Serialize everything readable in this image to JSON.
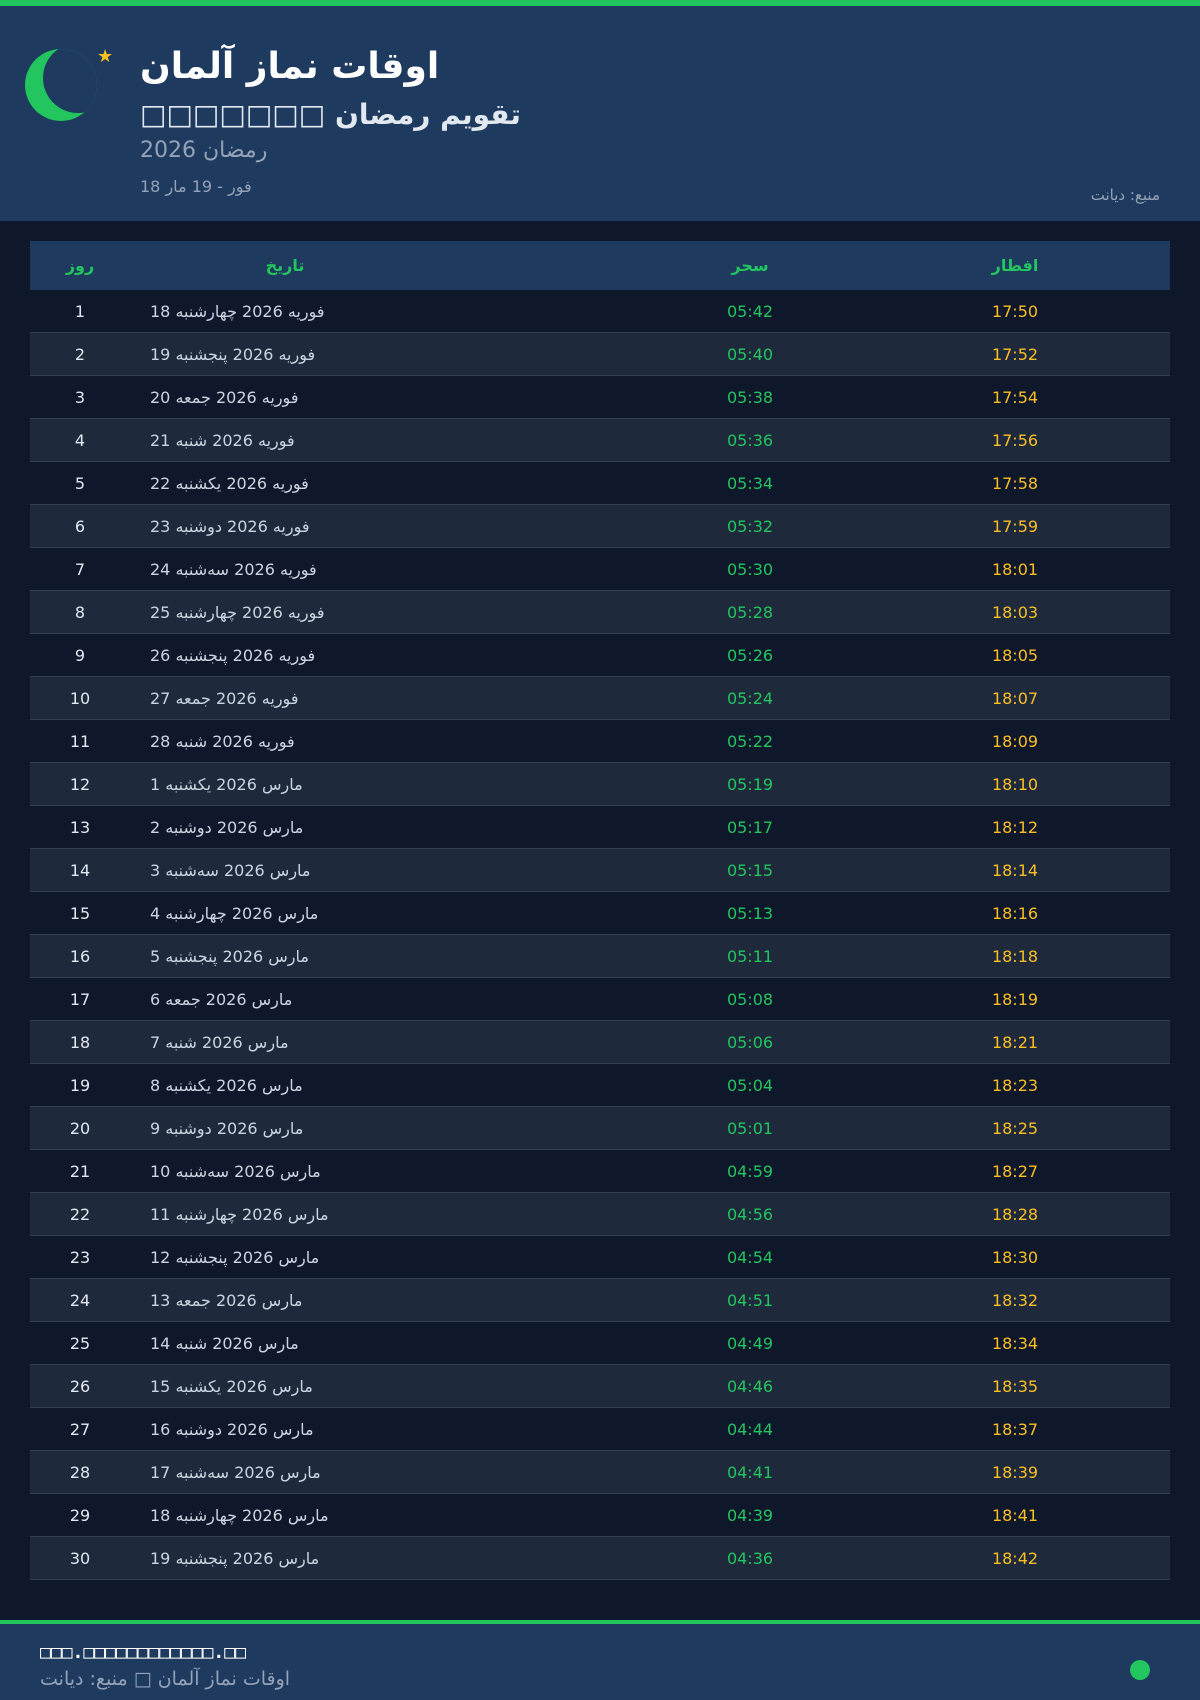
{
  "header": {
    "title": "اوقات نماز آلمان",
    "subtitle": "□□□□□□□ تقویم رمضان",
    "year_label": "رمضان 2026",
    "date_range": "18 فور - 19 مار",
    "source": "منبع: دیانت",
    "icons": [
      "crescent-moon-icon",
      "star-icon"
    ]
  },
  "table": {
    "columns": {
      "day": "روز",
      "date": "تاریخ",
      "suhoor": "سحر",
      "iftar": "افطار"
    },
    "rows": [
      {
        "day": "1",
        "date": "18 فوریه 2026 چهارشنبه",
        "suhoor": "05:42",
        "iftar": "17:50"
      },
      {
        "day": "2",
        "date": "19 فوریه 2026 پنجشنبه",
        "suhoor": "05:40",
        "iftar": "17:52"
      },
      {
        "day": "3",
        "date": "20 فوریه 2026 جمعه",
        "suhoor": "05:38",
        "iftar": "17:54"
      },
      {
        "day": "4",
        "date": "21 فوریه 2026 شنبه",
        "suhoor": "05:36",
        "iftar": "17:56"
      },
      {
        "day": "5",
        "date": "22 فوریه 2026 یکشنبه",
        "suhoor": "05:34",
        "iftar": "17:58"
      },
      {
        "day": "6",
        "date": "23 فوریه 2026 دوشنبه",
        "suhoor": "05:32",
        "iftar": "17:59"
      },
      {
        "day": "7",
        "date": "24 فوریه 2026 سه‌شنبه",
        "suhoor": "05:30",
        "iftar": "18:01"
      },
      {
        "day": "8",
        "date": "25 فوریه 2026 چهارشنبه",
        "suhoor": "05:28",
        "iftar": "18:03"
      },
      {
        "day": "9",
        "date": "26 فوریه 2026 پنجشنبه",
        "suhoor": "05:26",
        "iftar": "18:05"
      },
      {
        "day": "10",
        "date": "27 فوریه 2026 جمعه",
        "suhoor": "05:24",
        "iftar": "18:07"
      },
      {
        "day": "11",
        "date": "28 فوریه 2026 شنبه",
        "suhoor": "05:22",
        "iftar": "18:09"
      },
      {
        "day": "12",
        "date": "1 مارس 2026 یکشنبه",
        "suhoor": "05:19",
        "iftar": "18:10"
      },
      {
        "day": "13",
        "date": "2 مارس 2026 دوشنبه",
        "suhoor": "05:17",
        "iftar": "18:12"
      },
      {
        "day": "14",
        "date": "3 مارس 2026 سه‌شنبه",
        "suhoor": "05:15",
        "iftar": "18:14"
      },
      {
        "day": "15",
        "date": "4 مارس 2026 چهارشنبه",
        "suhoor": "05:13",
        "iftar": "18:16"
      },
      {
        "day": "16",
        "date": "5 مارس 2026 پنجشنبه",
        "suhoor": "05:11",
        "iftar": "18:18"
      },
      {
        "day": "17",
        "date": "6 مارس 2026 جمعه",
        "suhoor": "05:08",
        "iftar": "18:19"
      },
      {
        "day": "18",
        "date": "7 مارس 2026 شنبه",
        "suhoor": "05:06",
        "iftar": "18:21"
      },
      {
        "day": "19",
        "date": "8 مارس 2026 یکشنبه",
        "suhoor": "05:04",
        "iftar": "18:23"
      },
      {
        "day": "20",
        "date": "9 مارس 2026 دوشنبه",
        "suhoor": "05:01",
        "iftar": "18:25"
      },
      {
        "day": "21",
        "date": "10 مارس 2026 سه‌شنبه",
        "suhoor": "04:59",
        "iftar": "18:27"
      },
      {
        "day": "22",
        "date": "11 مارس 2026 چهارشنبه",
        "suhoor": "04:56",
        "iftar": "18:28"
      },
      {
        "day": "23",
        "date": "12 مارس 2026 پنجشنبه",
        "suhoor": "04:54",
        "iftar": "18:30"
      },
      {
        "day": "24",
        "date": "13 مارس 2026 جمعه",
        "suhoor": "04:51",
        "iftar": "18:32"
      },
      {
        "day": "25",
        "date": "14 مارس 2026 شنبه",
        "suhoor": "04:49",
        "iftar": "18:34"
      },
      {
        "day": "26",
        "date": "15 مارس 2026 یکشنبه",
        "suhoor": "04:46",
        "iftar": "18:35"
      },
      {
        "day": "27",
        "date": "16 مارس 2026 دوشنبه",
        "suhoor": "04:44",
        "iftar": "18:37"
      },
      {
        "day": "28",
        "date": "17 مارس 2026 سه‌شنبه",
        "suhoor": "04:41",
        "iftar": "18:39"
      },
      {
        "day": "29",
        "date": "18 مارس 2026 چهارشنبه",
        "suhoor": "04:39",
        "iftar": "18:41"
      },
      {
        "day": "30",
        "date": "19 مارس 2026 پنجشنبه",
        "suhoor": "04:36",
        "iftar": "18:42"
      }
    ]
  },
  "footer": {
    "url": "□□□.□□□□□□□□□□□□.□□",
    "text": "اوقات نماز آلمان □ منبع: دیانت",
    "status_icon": "status-dot-icon"
  },
  "colors": {
    "accent": "#22c55e",
    "iftar": "#fbbf24",
    "header_bg": "#1e3a5f",
    "page_bg": "#0f172a"
  }
}
